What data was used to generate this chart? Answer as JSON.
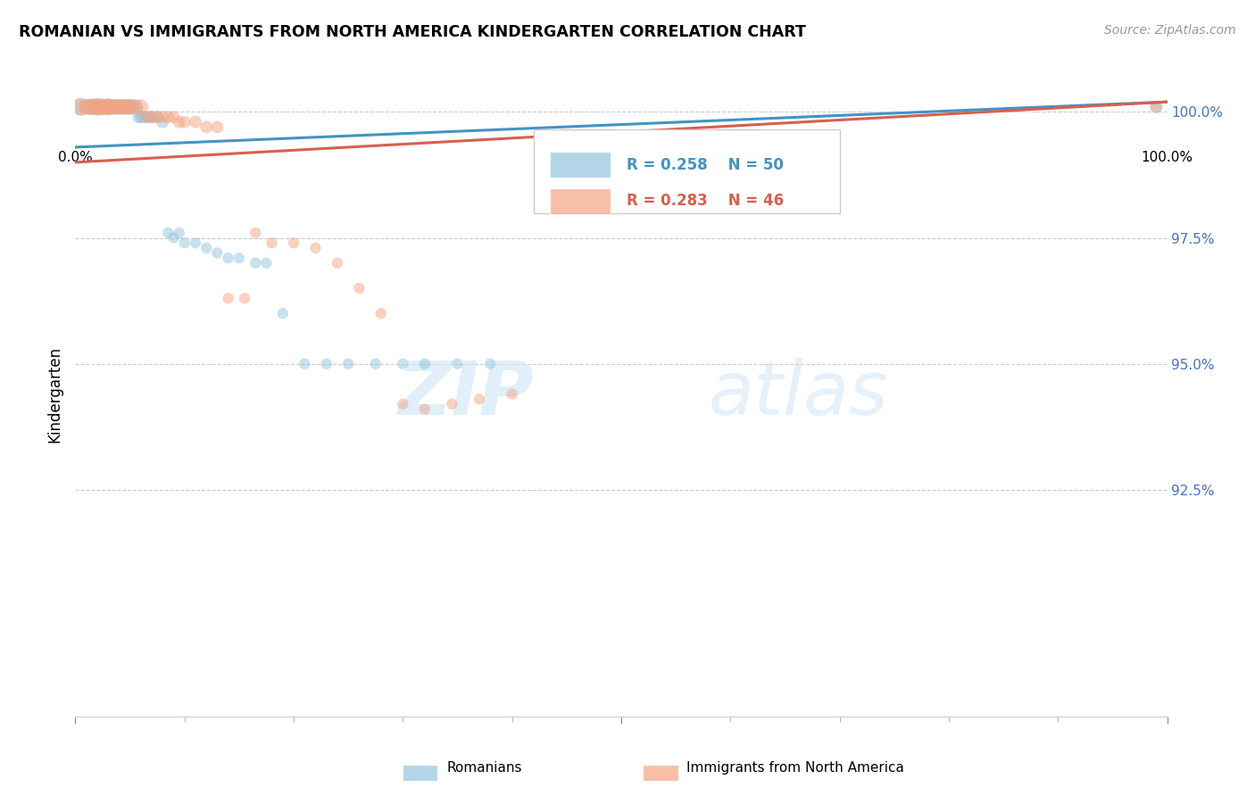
{
  "title": "ROMANIAN VS IMMIGRANTS FROM NORTH AMERICA KINDERGARTEN CORRELATION CHART",
  "source": "Source: ZipAtlas.com",
  "ylabel": "Kindergarten",
  "blue_R": 0.258,
  "blue_N": 50,
  "pink_R": 0.283,
  "pink_N": 46,
  "blue_color": "#92c5de",
  "pink_color": "#f4a582",
  "blue_line_color": "#4393c3",
  "pink_line_color": "#d6604d",
  "legend_label_blue": "Romanians",
  "legend_label_pink": "Immigrants from North America",
  "watermark_zip": "ZIP",
  "watermark_atlas": "atlas",
  "xlim": [
    0.0,
    1.0
  ],
  "ylim": [
    0.88,
    1.008
  ],
  "yticks": [
    0.925,
    0.95,
    0.975,
    1.0
  ],
  "ytick_labels": [
    "92.5%",
    "95.0%",
    "97.5%",
    "100.0%"
  ],
  "blue_line_x": [
    0.0,
    1.0
  ],
  "blue_line_y": [
    0.993,
    1.002
  ],
  "pink_line_x": [
    0.0,
    1.0
  ],
  "pink_line_y": [
    0.99,
    1.002
  ],
  "blue_points_x": [
    0.005,
    0.01,
    0.012,
    0.015,
    0.015,
    0.018,
    0.02,
    0.022,
    0.025,
    0.027,
    0.03,
    0.032,
    0.035,
    0.038,
    0.04,
    0.042,
    0.045,
    0.048,
    0.05,
    0.052,
    0.055,
    0.058,
    0.06,
    0.062,
    0.065,
    0.068,
    0.07,
    0.075,
    0.08,
    0.085,
    0.09,
    0.095,
    0.1,
    0.11,
    0.12,
    0.13,
    0.14,
    0.15,
    0.165,
    0.175,
    0.19,
    0.21,
    0.23,
    0.25,
    0.275,
    0.3,
    0.32,
    0.35,
    0.38,
    0.99
  ],
  "blue_points_y": [
    1.001,
    1.001,
    1.001,
    1.001,
    1.001,
    1.001,
    1.001,
    1.001,
    1.001,
    1.001,
    1.001,
    1.001,
    1.001,
    1.001,
    1.001,
    1.001,
    1.001,
    1.001,
    1.001,
    1.001,
    1.001,
    0.999,
    0.999,
    0.999,
    0.999,
    0.999,
    0.999,
    0.999,
    0.998,
    0.976,
    0.975,
    0.976,
    0.974,
    0.974,
    0.973,
    0.972,
    0.971,
    0.971,
    0.97,
    0.97,
    0.96,
    0.95,
    0.95,
    0.95,
    0.95,
    0.95,
    0.95,
    0.95,
    0.95,
    1.001
  ],
  "blue_sizes": [
    200,
    150,
    150,
    180,
    150,
    150,
    200,
    150,
    180,
    150,
    180,
    150,
    160,
    150,
    150,
    150,
    160,
    150,
    160,
    150,
    150,
    100,
    100,
    100,
    100,
    100,
    100,
    100,
    100,
    80,
    80,
    80,
    80,
    80,
    80,
    80,
    80,
    80,
    80,
    80,
    80,
    80,
    80,
    80,
    80,
    80,
    80,
    80,
    80,
    100
  ],
  "pink_points_x": [
    0.005,
    0.01,
    0.012,
    0.015,
    0.018,
    0.02,
    0.022,
    0.025,
    0.028,
    0.03,
    0.032,
    0.035,
    0.038,
    0.04,
    0.042,
    0.045,
    0.048,
    0.05,
    0.055,
    0.06,
    0.065,
    0.07,
    0.075,
    0.08,
    0.085,
    0.09,
    0.095,
    0.1,
    0.11,
    0.12,
    0.13,
    0.14,
    0.155,
    0.165,
    0.18,
    0.2,
    0.22,
    0.24,
    0.26,
    0.28,
    0.3,
    0.32,
    0.345,
    0.37,
    0.4,
    0.99
  ],
  "pink_points_y": [
    1.001,
    1.001,
    1.001,
    1.001,
    1.001,
    1.001,
    1.001,
    1.001,
    1.001,
    1.001,
    1.001,
    1.001,
    1.001,
    1.001,
    1.001,
    1.001,
    1.001,
    1.001,
    1.001,
    1.001,
    0.999,
    0.999,
    0.999,
    0.999,
    0.999,
    0.999,
    0.998,
    0.998,
    0.998,
    0.997,
    0.997,
    0.963,
    0.963,
    0.976,
    0.974,
    0.974,
    0.973,
    0.97,
    0.965,
    0.96,
    0.942,
    0.941,
    0.942,
    0.943,
    0.944,
    1.001
  ],
  "pink_sizes": [
    200,
    150,
    150,
    180,
    150,
    150,
    200,
    150,
    150,
    180,
    150,
    160,
    150,
    150,
    150,
    160,
    150,
    150,
    150,
    150,
    100,
    100,
    100,
    100,
    100,
    100,
    100,
    100,
    100,
    100,
    100,
    80,
    80,
    80,
    80,
    80,
    80,
    80,
    80,
    80,
    80,
    80,
    80,
    80,
    80,
    100
  ]
}
